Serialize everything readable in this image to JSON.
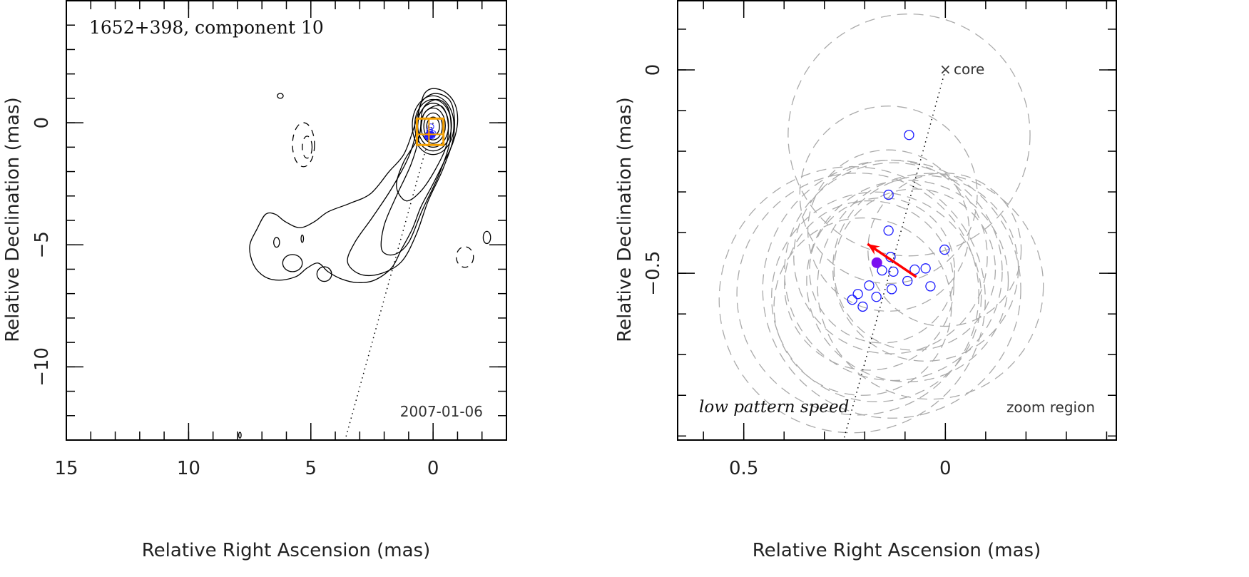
{
  "chart_data": [
    {
      "type": "contour",
      "title": "1652+398, component 10",
      "date": "2007-01-06",
      "xlabel": "Relative Right Ascension (mas)",
      "ylabel": "Relative Declination (mas)",
      "xlim": [
        15,
        -3
      ],
      "ylim": [
        -13,
        5
      ],
      "xticks": [
        15,
        10,
        5,
        0
      ],
      "xtick_labels": [
        "15",
        "10",
        "5",
        "0"
      ],
      "yticks": [
        0,
        -5,
        -10
      ],
      "ytick_labels": [
        "0",
        "−5",
        "−10"
      ],
      "contours_positive": [
        [
          [
            0,
            1.4
          ],
          [
            -0.5,
            1.25
          ],
          [
            -0.9,
            0.75
          ],
          [
            -1.0,
            0.0
          ],
          [
            -0.8,
            -0.85
          ],
          [
            -0.4,
            -1.7
          ],
          [
            0.05,
            -2.6
          ],
          [
            0.5,
            -3.45
          ],
          [
            0.85,
            -4.35
          ],
          [
            1.3,
            -5.2
          ],
          [
            1.7,
            -5.95
          ],
          [
            2.4,
            -6.45
          ],
          [
            3.1,
            -6.55
          ],
          [
            3.75,
            -6.4
          ],
          [
            4.3,
            -6.1
          ],
          [
            4.7,
            -5.75
          ],
          [
            5.15,
            -5.95
          ],
          [
            5.6,
            -6.3
          ],
          [
            6.3,
            -6.45
          ],
          [
            6.9,
            -6.3
          ],
          [
            7.35,
            -5.8
          ],
          [
            7.5,
            -5.05
          ],
          [
            7.2,
            -4.35
          ],
          [
            6.85,
            -3.75
          ],
          [
            6.45,
            -3.75
          ],
          [
            6.05,
            -4.05
          ],
          [
            5.45,
            -4.3
          ],
          [
            4.85,
            -4.05
          ],
          [
            4.3,
            -3.65
          ],
          [
            3.4,
            -3.3
          ],
          [
            2.55,
            -2.9
          ],
          [
            1.8,
            -2.0
          ],
          [
            1.2,
            -1.3
          ],
          [
            0.8,
            -0.25
          ],
          [
            0.55,
            0.6
          ],
          [
            0.35,
            1.2
          ]
        ],
        [
          [
            -0.1,
            1.2
          ],
          [
            -0.75,
            0.8
          ],
          [
            -0.85,
            -0.5
          ],
          [
            -0.4,
            -1.9
          ],
          [
            0.2,
            -3.2
          ],
          [
            0.7,
            -4.6
          ],
          [
            1.3,
            -5.7
          ],
          [
            2.2,
            -6.2
          ],
          [
            3.0,
            -6.2
          ],
          [
            3.5,
            -5.7
          ],
          [
            3.2,
            -4.9
          ],
          [
            2.5,
            -3.9
          ],
          [
            1.7,
            -2.7
          ],
          [
            1.0,
            -1.4
          ],
          [
            0.65,
            -0.2
          ],
          [
            0.5,
            0.8
          ]
        ],
        [
          [
            -0.2,
            0.95
          ],
          [
            -0.65,
            0.5
          ],
          [
            -0.7,
            -0.7
          ],
          [
            -0.25,
            -2.1
          ],
          [
            0.45,
            -3.6
          ],
          [
            1.0,
            -4.9
          ],
          [
            1.6,
            -5.4
          ],
          [
            2.1,
            -5.2
          ],
          [
            2.0,
            -4.2
          ],
          [
            1.5,
            -3.0
          ],
          [
            0.9,
            -1.7
          ],
          [
            0.55,
            -0.5
          ],
          [
            0.4,
            0.6
          ]
        ],
        [
          [
            -0.3,
            0.7
          ],
          [
            -0.6,
            0.1
          ],
          [
            -0.55,
            -0.9
          ],
          [
            -0.1,
            -1.9
          ],
          [
            0.5,
            -2.8
          ],
          [
            1.1,
            -3.2
          ],
          [
            1.5,
            -2.6
          ],
          [
            1.2,
            -1.6
          ],
          [
            0.6,
            -0.6
          ],
          [
            0.35,
            0.4
          ]
        ]
      ],
      "contour_ellipses_positive": [
        [
          0,
          -0.1,
          0.85,
          1.2
        ],
        [
          0,
          -0.1,
          0.75,
          1.05
        ],
        [
          0,
          -0.1,
          0.63,
          0.9
        ],
        [
          0,
          -0.12,
          0.5,
          0.72
        ],
        [
          0,
          -0.15,
          0.38,
          0.55
        ],
        [
          0,
          -0.15,
          0.26,
          0.38
        ],
        [
          6.4,
          -4.9,
          0.12,
          0.2
        ],
        [
          5.75,
          -5.75,
          0.4,
          0.35
        ],
        [
          4.45,
          -6.2,
          0.3,
          0.3
        ],
        [
          5.35,
          -4.75,
          0.05,
          0.15
        ],
        [
          6.25,
          1.1,
          0.12,
          0.1
        ],
        [
          7.9,
          -12.8,
          0.05,
          0.12
        ],
        [
          -2.2,
          -4.7,
          0.15,
          0.25
        ]
      ],
      "contour_ellipses_negative": [
        [
          5.3,
          -0.9,
          0.45,
          0.9
        ],
        [
          5.15,
          -1.0,
          0.2,
          0.45
        ],
        [
          -1.3,
          -5.5,
          0.35,
          0.42
        ]
      ],
      "zoom_box": {
        "x": [
          0.664,
          -0.424
        ],
        "y": [
          0.17,
          -0.91
        ]
      },
      "marker": [
        0.17,
        -0.474
      ]
    },
    {
      "type": "scatter",
      "xlabel": "Relative Right Ascension (mas)",
      "ylabel": "Relative Declination (mas)",
      "xlim": [
        0.664,
        -0.424
      ],
      "ylim": [
        -0.91,
        0.17
      ],
      "xticks": [
        0.5,
        0
      ],
      "xtick_labels": [
        "0.5",
        "0"
      ],
      "yticks": [
        0,
        -0.5
      ],
      "ytick_labels": [
        "0",
        "−0.5"
      ],
      "core_label": "core",
      "core_marker": "×",
      "annotation_left": "low pattern speed",
      "annotation_right": "zoom region",
      "component_positions": [
        [
          0.09,
          -0.16
        ],
        [
          0.141,
          -0.307
        ],
        [
          0.141,
          -0.395
        ],
        [
          0.136,
          -0.46
        ],
        [
          0.002,
          -0.442
        ],
        [
          0.076,
          -0.491
        ],
        [
          0.049,
          -0.488
        ],
        [
          0.129,
          -0.496
        ],
        [
          0.157,
          -0.493
        ],
        [
          0.094,
          -0.519
        ],
        [
          0.037,
          -0.532
        ],
        [
          0.133,
          -0.539
        ],
        [
          0.189,
          -0.53
        ],
        [
          0.217,
          -0.551
        ],
        [
          0.231,
          -0.565
        ],
        [
          0.171,
          -0.558
        ],
        [
          0.205,
          -0.582
        ]
      ],
      "component_sizes": [
        0.3,
        0.22,
        0.2,
        0.24,
        0.19,
        0.2,
        0.23,
        0.27,
        0.18,
        0.25,
        0.28,
        0.32,
        0.21,
        0.3,
        0.33,
        0.26,
        0.22
      ],
      "mean_position": [
        0.17,
        -0.474
      ],
      "velocity_arrow": {
        "from": [
          0.072,
          -0.509
        ],
        "to": [
          0.193,
          -0.428
        ]
      },
      "jet_direction_line": {
        "from": [
          0,
          0
        ],
        "to": [
          0.253,
          -0.912
        ]
      }
    }
  ],
  "colors": {
    "points": "#1a1aff",
    "mean": "#7a10f0",
    "arrow": "#ff0000",
    "box": "#f5a000",
    "ellipse": "#aaaaaa"
  }
}
